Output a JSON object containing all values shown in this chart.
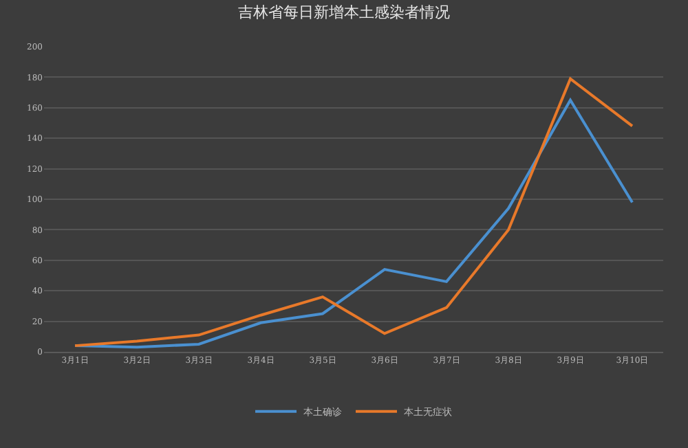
{
  "chart_data": {
    "type": "line",
    "title": "吉林省每日新增本土感染者情况",
    "categories": [
      "3月1日",
      "3月2日",
      "3月3日",
      "3月4日",
      "3月5日",
      "3月6日",
      "3月7日",
      "3月8日",
      "3月9日",
      "3月10日"
    ],
    "series": [
      {
        "name": "本土确诊",
        "color": "#4a90d0",
        "values": [
          4,
          3,
          5,
          19,
          25,
          54,
          46,
          94,
          165,
          98
        ]
      },
      {
        "name": "本土无症状",
        "color": "#e8792a",
        "values": [
          4,
          7,
          11,
          24,
          36,
          12,
          29,
          80,
          179,
          148
        ]
      }
    ],
    "ylim": [
      0,
      200
    ],
    "yticks": [
      0,
      20,
      40,
      60,
      80,
      100,
      120,
      140,
      160,
      180,
      200
    ],
    "grid": "y",
    "legend": "bottom",
    "marker": "none",
    "line_style": "solid"
  }
}
